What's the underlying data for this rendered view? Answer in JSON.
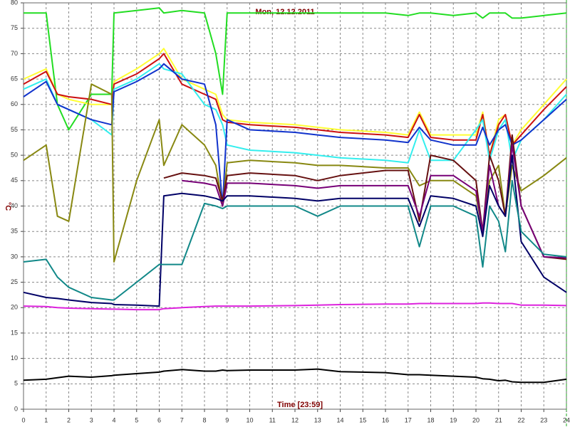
{
  "chart_data": {
    "type": "line",
    "title": "Mon, 12.12.2011",
    "x_label": "Time [23:59]",
    "y_label": "°C",
    "x": [
      0,
      1,
      1.5,
      2,
      3,
      3.9,
      4,
      5,
      6,
      6.2,
      7,
      8,
      8.5,
      8.8,
      9,
      10,
      12,
      13,
      14,
      16,
      17,
      17.5,
      18,
      19,
      20,
      20.3,
      20.6,
      21,
      21.3,
      21.6,
      22,
      23,
      24
    ],
    "xlim": [
      0,
      24
    ],
    "xticks": [
      0,
      1,
      2,
      3,
      4,
      5,
      6,
      7,
      8,
      9,
      10,
      11,
      12,
      13,
      14,
      15,
      16,
      17,
      18,
      19,
      20,
      21,
      22,
      23,
      24
    ],
    "ylim": [
      0,
      80
    ],
    "yticks": [
      0,
      5,
      10,
      15,
      20,
      25,
      30,
      35,
      40,
      45,
      50,
      55,
      60,
      65,
      70,
      75,
      80
    ],
    "grid": true,
    "series": [
      {
        "color": "#22dd22",
        "values": [
          78,
          78,
          60,
          55,
          62,
          62,
          78,
          78.5,
          79,
          78,
          78.5,
          78,
          70,
          62,
          78,
          78,
          78,
          78,
          78,
          78,
          77.5,
          78,
          78,
          77.5,
          78,
          77,
          78,
          78,
          78,
          77,
          77,
          77.5,
          78
        ]
      },
      {
        "color": "#ffff33",
        "values": [
          65,
          67,
          62,
          61,
          60,
          60,
          64.5,
          67,
          70,
          71,
          65,
          63,
          62,
          58,
          57,
          56.5,
          56,
          55.5,
          55,
          54.5,
          54,
          58.5,
          54,
          54,
          54,
          58.5,
          50,
          57,
          58,
          52,
          55,
          60,
          65
        ]
      },
      {
        "color": "#cc1111",
        "values": [
          64,
          66.5,
          62,
          61.5,
          61,
          60,
          64,
          66,
          69,
          70,
          64,
          62,
          61,
          57,
          56.5,
          56,
          55.5,
          55,
          54.5,
          54,
          53.5,
          58,
          53.5,
          53,
          53,
          58,
          50,
          56,
          58,
          52,
          54,
          59,
          63.5
        ]
      },
      {
        "color": "#33eeee",
        "values": [
          63,
          65,
          60,
          59,
          57,
          54,
          63,
          65,
          68,
          67,
          66,
          60,
          59,
          56,
          52,
          51,
          50.5,
          50,
          49.5,
          49,
          48.5,
          55,
          49,
          49,
          55,
          57,
          49,
          55,
          57,
          49,
          53,
          57,
          62
        ]
      },
      {
        "color": "#1133cc",
        "values": [
          61.5,
          64.5,
          60,
          59,
          57,
          56,
          62.5,
          64.5,
          67,
          68,
          65,
          64,
          56,
          40,
          57,
          55,
          54.5,
          54,
          53.5,
          53,
          52.5,
          55.5,
          53,
          52,
          52,
          55.5,
          52,
          55,
          56,
          52,
          53,
          57,
          61
        ]
      },
      {
        "color": "#888811",
        "values": [
          49,
          52,
          38,
          37,
          64,
          62,
          29,
          45,
          57,
          48,
          56,
          52,
          48,
          40,
          48.5,
          49,
          48.5,
          48,
          48,
          47.5,
          47.5,
          44,
          45,
          45,
          42,
          35,
          45,
          48,
          38,
          48,
          43,
          46,
          49.5
        ]
      },
      {
        "color": "#661111",
        "values": [
          null,
          null,
          null,
          null,
          null,
          null,
          null,
          null,
          null,
          45.5,
          46.5,
          46,
          45.5,
          41,
          46,
          46.5,
          46,
          45,
          46,
          47,
          47,
          37,
          50,
          49,
          45,
          35,
          50,
          45,
          38,
          54,
          40,
          30,
          29.5
        ]
      },
      {
        "color": "#770077",
        "values": [
          null,
          null,
          null,
          null,
          null,
          null,
          null,
          null,
          null,
          null,
          45,
          44.5,
          44,
          40,
          44.5,
          44.5,
          44,
          43.5,
          44,
          44,
          44,
          38,
          46,
          46,
          43,
          35,
          48,
          40,
          38,
          52,
          40,
          30,
          29.8
        ]
      },
      {
        "color": "#000066",
        "values": [
          23,
          22,
          21.8,
          21.5,
          21,
          20.8,
          20.6,
          20.5,
          20.3,
          42,
          42.5,
          42,
          41.5,
          41,
          42,
          42,
          41.5,
          41,
          41.5,
          41.5,
          41.5,
          36,
          42,
          41.5,
          40,
          34,
          44,
          40,
          38,
          50,
          33,
          26,
          23
        ]
      },
      {
        "color": "#118888",
        "values": [
          29,
          29.5,
          26,
          24,
          22,
          21.5,
          21.5,
          25,
          28.5,
          28.5,
          28.5,
          40.5,
          40,
          39.5,
          40,
          40,
          40,
          38,
          40,
          40,
          40,
          32,
          40,
          40,
          38,
          28,
          40,
          37,
          31,
          45,
          35,
          30.5,
          30
        ]
      },
      {
        "color": "#dd22dd",
        "values": [
          20.3,
          20.2,
          20,
          19.9,
          19.8,
          19.7,
          19.7,
          19.6,
          19.6,
          19.8,
          20,
          20.2,
          20.3,
          20.3,
          20.3,
          20.3,
          20.4,
          20.5,
          20.6,
          20.7,
          20.7,
          20.8,
          20.8,
          20.8,
          20.8,
          20.9,
          20.9,
          20.8,
          20.8,
          20.8,
          20.5,
          20.5,
          20.4
        ]
      },
      {
        "color": "#000000",
        "values": [
          5.7,
          5.9,
          6.2,
          6.5,
          6.3,
          6.6,
          6.7,
          7,
          7.3,
          7.5,
          7.8,
          7.5,
          7.5,
          7.7,
          7.6,
          7.7,
          7.7,
          7.9,
          7.4,
          7.2,
          6.8,
          6.8,
          6.7,
          6.5,
          6.3,
          6.0,
          5.9,
          5.6,
          5.7,
          5.4,
          5.3,
          5.3,
          5.9
        ]
      }
    ]
  }
}
